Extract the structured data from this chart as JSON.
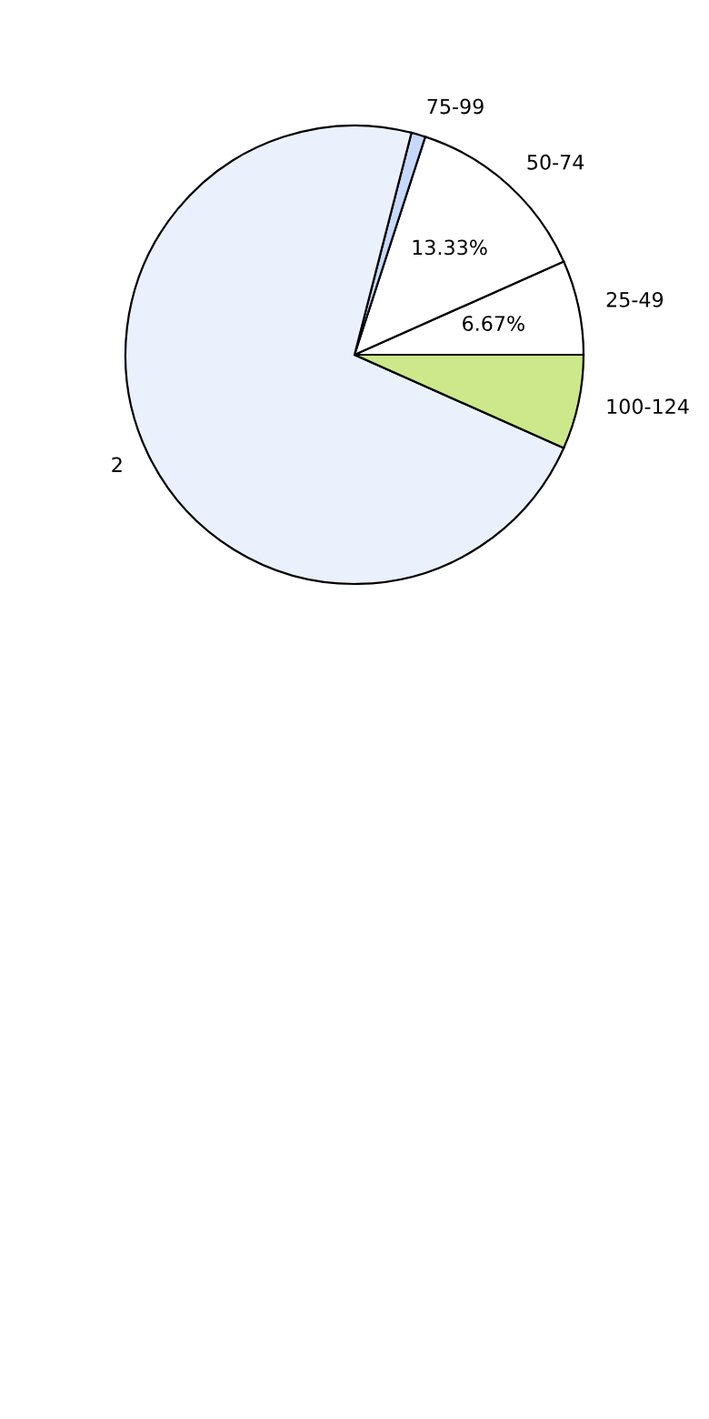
{
  "chart_data": {
    "type": "pie",
    "categories": [
      "25-49",
      "50-74",
      "75-99",
      "2",
      "100-124"
    ],
    "values": [
      6.67,
      13.33,
      1,
      72.33,
      6.67
    ],
    "colors": [
      "#ffffff",
      "#ffffff",
      "#c6d9fb",
      "#eaf1fd",
      "#cde88a"
    ],
    "value_labels": [
      "6.67%",
      "13.33%",
      null,
      null,
      null
    ]
  }
}
